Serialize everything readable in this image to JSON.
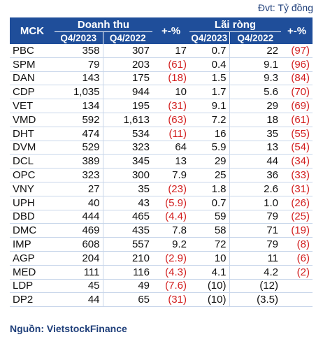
{
  "unit_label": "Đvt: Tỷ đồng",
  "headers": {
    "mck": "MCK",
    "revenue": "Doanh thu",
    "profit": "Lãi ròng",
    "pct": "+-%",
    "q4_2023": "Q4/2023",
    "q4_2022": "Q4/2022"
  },
  "rows": [
    {
      "code": "PBC",
      "rev_2023": "358",
      "rev_2022": "307",
      "rev_pct": "17",
      "np_2023": "0.7",
      "np_2022": "22",
      "np_pct": "(97)"
    },
    {
      "code": "SPM",
      "rev_2023": "79",
      "rev_2022": "203",
      "rev_pct": "(61)",
      "np_2023": "0.4",
      "np_2022": "9.1",
      "np_pct": "(96)"
    },
    {
      "code": "DAN",
      "rev_2023": "143",
      "rev_2022": "175",
      "rev_pct": "(18)",
      "np_2023": "1.5",
      "np_2022": "9.3",
      "np_pct": "(84)"
    },
    {
      "code": "CDP",
      "rev_2023": "1,035",
      "rev_2022": "944",
      "rev_pct": "10",
      "np_2023": "1.7",
      "np_2022": "5.6",
      "np_pct": "(70)"
    },
    {
      "code": "VET",
      "rev_2023": "134",
      "rev_2022": "195",
      "rev_pct": "(31)",
      "np_2023": "9.1",
      "np_2022": "29",
      "np_pct": "(69)"
    },
    {
      "code": "VMD",
      "rev_2023": "592",
      "rev_2022": "1,613",
      "rev_pct": "(63)",
      "np_2023": "7.2",
      "np_2022": "18",
      "np_pct": "(61)"
    },
    {
      "code": "DHT",
      "rev_2023": "474",
      "rev_2022": "534",
      "rev_pct": "(11)",
      "np_2023": "16",
      "np_2022": "35",
      "np_pct": "(55)"
    },
    {
      "code": "DVM",
      "rev_2023": "529",
      "rev_2022": "323",
      "rev_pct": "64",
      "np_2023": "5.9",
      "np_2022": "13",
      "np_pct": "(54)"
    },
    {
      "code": "DCL",
      "rev_2023": "389",
      "rev_2022": "345",
      "rev_pct": "13",
      "np_2023": "29",
      "np_2022": "44",
      "np_pct": "(34)"
    },
    {
      "code": "OPC",
      "rev_2023": "323",
      "rev_2022": "300",
      "rev_pct": "7.9",
      "np_2023": "25",
      "np_2022": "36",
      "np_pct": "(33)"
    },
    {
      "code": "VNY",
      "rev_2023": "27",
      "rev_2022": "35",
      "rev_pct": "(23)",
      "np_2023": "1.8",
      "np_2022": "2.6",
      "np_pct": "(31)"
    },
    {
      "code": "UPH",
      "rev_2023": "40",
      "rev_2022": "43",
      "rev_pct": "(5.9)",
      "np_2023": "0.7",
      "np_2022": "1.0",
      "np_pct": "(26)"
    },
    {
      "code": "DBD",
      "rev_2023": "444",
      "rev_2022": "465",
      "rev_pct": "(4.4)",
      "np_2023": "59",
      "np_2022": "79",
      "np_pct": "(25)"
    },
    {
      "code": "DMC",
      "rev_2023": "469",
      "rev_2022": "435",
      "rev_pct": "7.8",
      "np_2023": "58",
      "np_2022": "71",
      "np_pct": "(19)"
    },
    {
      "code": "IMP",
      "rev_2023": "608",
      "rev_2022": "557",
      "rev_pct": "9.2",
      "np_2023": "72",
      "np_2022": "79",
      "np_pct": "(8)"
    },
    {
      "code": "AGP",
      "rev_2023": "204",
      "rev_2022": "210",
      "rev_pct": "(2.9)",
      "np_2023": "10",
      "np_2022": "11",
      "np_pct": "(6)"
    },
    {
      "code": "MED",
      "rev_2023": "111",
      "rev_2022": "116",
      "rev_pct": "(4.3)",
      "np_2023": "4.1",
      "np_2022": "4.2",
      "np_pct": "(2)"
    },
    {
      "code": "LDP",
      "rev_2023": "45",
      "rev_2022": "49",
      "rev_pct": "(7.6)",
      "np_2023": "(10)",
      "np_2022": "(12)",
      "np_pct": ""
    },
    {
      "code": "DP2",
      "rev_2023": "44",
      "rev_2022": "65",
      "rev_pct": "(31)",
      "np_2023": "(10)",
      "np_2022": "(3.5)",
      "np_pct": ""
    }
  ],
  "source": "Nguồn: VietstockFinance",
  "colors": {
    "header_bg": "#1f4e9a",
    "header_text": "#ffffff",
    "negative": "#d21f1f",
    "source_text": "#1f3f7a"
  }
}
